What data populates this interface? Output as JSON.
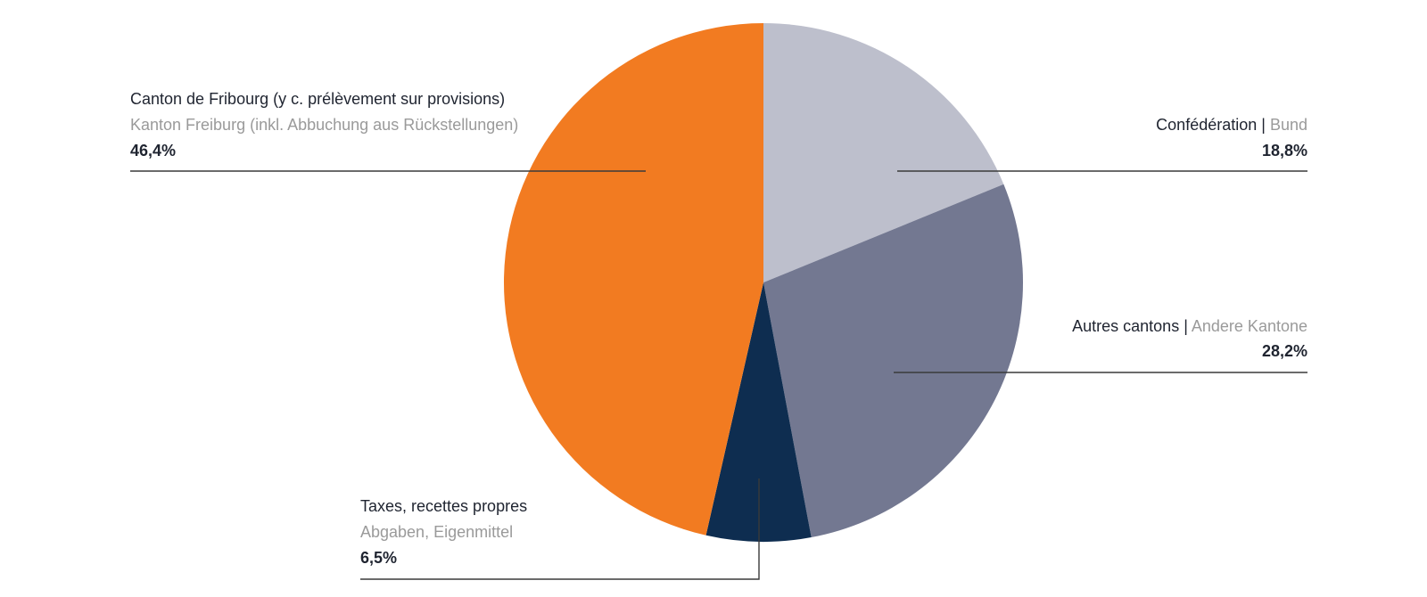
{
  "chart_data": {
    "type": "pie",
    "start_angle_deg": 0,
    "direction": "clockwise",
    "colors": {
      "text_primary": "#1f2430",
      "text_secondary": "#9a9a9a",
      "leader": "#3a3a3a"
    },
    "slices": [
      {
        "label_fr": "Confédération",
        "separator": " | ",
        "label_de": "Bund",
        "value": 18.8,
        "value_label": "18,8%",
        "color": "#bdbfcc"
      },
      {
        "label_fr": "Autres cantons",
        "separator": " | ",
        "label_de": "Andere Kantone",
        "value": 28.2,
        "value_label": "28,2%",
        "color": "#737891"
      },
      {
        "label_fr": "Taxes, recettes propres",
        "separator": "",
        "label_de": "Abgaben, Eigenmittel",
        "value": 6.5,
        "value_label": "6,5%",
        "color": "#0e2d50"
      },
      {
        "label_fr": "Canton de Fribourg (y c. prélèvement sur provisions)",
        "separator": "",
        "label_de": "Kanton Freiburg (inkl. Abbuchung aus Rückstellungen)",
        "value": 46.4,
        "value_label": "46,4%",
        "color": "#f27b21"
      }
    ]
  }
}
